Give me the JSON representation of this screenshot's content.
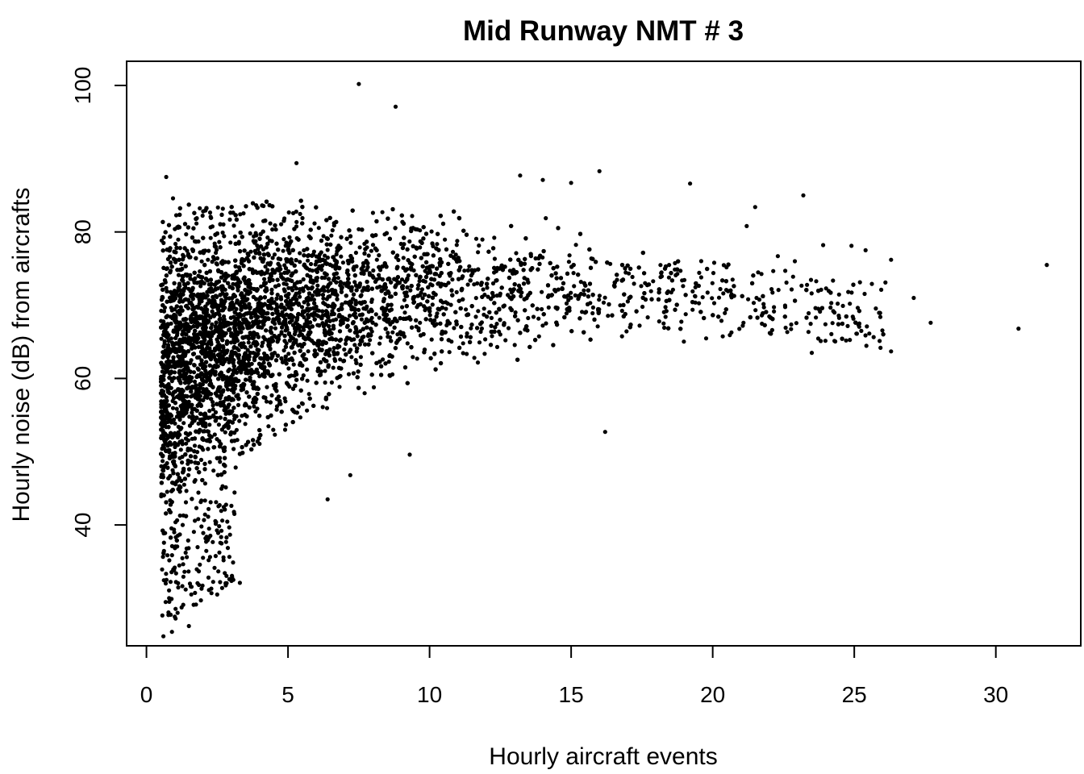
{
  "chart_data": {
    "type": "scatter",
    "title": "Mid Runway NMT # 3",
    "xlabel": "Hourly aircraft events",
    "ylabel": "Hourly noise (dB) from aircrafts",
    "xlim": [
      -0.7,
      33
    ],
    "ylim": [
      23.5,
      103.3
    ],
    "xticks": [
      "0",
      "5",
      "10",
      "15",
      "20",
      "25",
      "30"
    ],
    "yticks": [
      "40",
      "60",
      "80",
      "100"
    ],
    "grid": false,
    "legend": "none",
    "marker_color": "#000000",
    "density_band": [
      [
        0.5,
        39,
        84
      ],
      [
        1.0,
        36,
        85
      ],
      [
        1.5,
        42,
        85
      ],
      [
        2.0,
        45,
        84
      ],
      [
        3.0,
        47,
        84
      ],
      [
        4.0,
        51,
        84
      ],
      [
        5.0,
        53,
        85
      ],
      [
        6.0,
        55,
        84
      ],
      [
        7.0,
        57,
        83
      ],
      [
        8.0,
        58,
        83
      ],
      [
        9.0,
        59,
        84
      ],
      [
        10.0,
        60,
        83
      ],
      [
        11.0,
        61,
        83
      ],
      [
        12.0,
        61,
        83
      ],
      [
        13.0,
        62,
        82
      ],
      [
        14.0,
        62,
        82
      ],
      [
        15.0,
        63,
        81
      ],
      [
        16.0,
        63,
        80
      ],
      [
        17.0,
        64,
        79
      ],
      [
        18.0,
        64,
        78
      ],
      [
        19.0,
        65,
        77
      ],
      [
        20.0,
        65,
        76
      ],
      [
        22.0,
        65,
        75
      ],
      [
        24.0,
        65,
        74
      ],
      [
        26.0,
        64,
        73
      ]
    ],
    "notable_points": [
      {
        "x": 7.5,
        "y": 100.2
      },
      {
        "x": 8.8,
        "y": 97.1
      },
      {
        "x": 31.8,
        "y": 75.5
      },
      {
        "x": 30.8,
        "y": 66.8
      },
      {
        "x": 27.7,
        "y": 67.6
      },
      {
        "x": 27.1,
        "y": 71.0
      },
      {
        "x": 26.3,
        "y": 76.2
      },
      {
        "x": 26.3,
        "y": 63.7
      },
      {
        "x": 26.1,
        "y": 73.1
      },
      {
        "x": 25.4,
        "y": 77.5
      },
      {
        "x": 24.9,
        "y": 78.1
      },
      {
        "x": 24.6,
        "y": 69.9
      },
      {
        "x": 24.3,
        "y": 69.0
      },
      {
        "x": 23.9,
        "y": 78.2
      },
      {
        "x": 23.2,
        "y": 85.0
      },
      {
        "x": 23.5,
        "y": 63.5
      },
      {
        "x": 22.9,
        "y": 76.0
      },
      {
        "x": 22.3,
        "y": 76.7
      },
      {
        "x": 21.5,
        "y": 83.4
      },
      {
        "x": 21.2,
        "y": 80.8
      },
      {
        "x": 19.2,
        "y": 86.6
      },
      {
        "x": 16.2,
        "y": 52.7
      },
      {
        "x": 16.0,
        "y": 88.3
      },
      {
        "x": 15.0,
        "y": 86.7
      },
      {
        "x": 14.0,
        "y": 87.1
      },
      {
        "x": 13.2,
        "y": 87.7
      },
      {
        "x": 9.3,
        "y": 49.6
      },
      {
        "x": 7.2,
        "y": 46.8
      },
      {
        "x": 6.4,
        "y": 43.5
      },
      {
        "x": 5.3,
        "y": 89.4
      },
      {
        "x": 3.3,
        "y": 32.1
      },
      {
        "x": 2.5,
        "y": 30.5
      },
      {
        "x": 0.7,
        "y": 87.5
      },
      {
        "x": 0.6,
        "y": 24.8
      },
      {
        "x": 0.9,
        "y": 25.4
      },
      {
        "x": 1.5,
        "y": 26.2
      },
      {
        "x": 1.1,
        "y": 28.0
      },
      {
        "x": 1.3,
        "y": 29.1
      },
      {
        "x": 0.8,
        "y": 30.0
      }
    ]
  }
}
